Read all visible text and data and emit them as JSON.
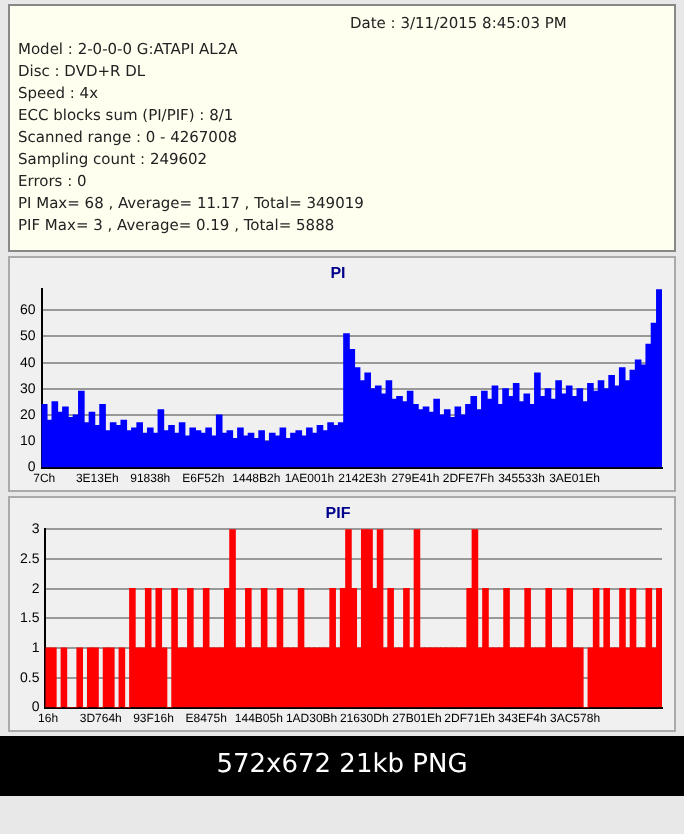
{
  "chart_data": [
    {
      "type": "other",
      "annotations": [
        "Date : 3/11/2015 8:45:03 PM",
        "Model : 2-0-0-0 G:ATAPI AL2A",
        "Disc : DVD+R DL",
        "Speed : 4x",
        "ECC blocks sum (PI/PIF) : 8/1",
        "Scanned range : 0 - 4267008",
        "Sampling count : 249602",
        "Errors : 0",
        "PI Max= 68 , Average= 11.17 , Total= 349019",
        "PIF Max= 3 , Average= 0.19 , Total= 5888"
      ]
    },
    {
      "type": "bar",
      "title": "PI",
      "color": "#0000ff",
      "grid": "y",
      "legend": false,
      "ylim": [
        0,
        68
      ],
      "yticks": [
        0,
        10,
        20,
        30,
        40,
        50,
        60
      ],
      "categories": [
        "7Ch",
        null,
        null,
        null,
        null,
        null,
        null,
        null,
        null,
        null,
        "3E13Eh",
        null,
        null,
        null,
        null,
        null,
        null,
        null,
        null,
        null,
        "91838h",
        null,
        null,
        null,
        null,
        null,
        null,
        null,
        null,
        null,
        "E6F52h",
        null,
        null,
        null,
        null,
        null,
        null,
        null,
        null,
        null,
        "1448B2h",
        null,
        null,
        null,
        null,
        null,
        null,
        null,
        null,
        null,
        "1AE001h",
        null,
        null,
        null,
        null,
        null,
        null,
        null,
        null,
        null,
        "2142E3h",
        null,
        null,
        null,
        null,
        null,
        null,
        null,
        null,
        null,
        "279E41h",
        null,
        null,
        null,
        null,
        null,
        null,
        null,
        null,
        null,
        "2DFE7Fh",
        null,
        null,
        null,
        null,
        null,
        null,
        null,
        null,
        null,
        "345533h",
        null,
        null,
        null,
        null,
        null,
        null,
        null,
        null,
        null,
        "3AE01Eh",
        null,
        null,
        null,
        null,
        null,
        null,
        null,
        null,
        null,
        null,
        null,
        null,
        null,
        null,
        null,
        null
      ],
      "values": [
        24,
        18,
        25,
        21,
        23,
        19,
        20,
        29,
        17,
        21,
        16,
        24,
        14,
        17,
        16,
        18,
        14,
        15,
        17,
        13,
        15,
        13,
        22,
        14,
        16,
        13,
        17,
        12,
        15,
        14,
        13,
        15,
        12,
        20,
        13,
        14,
        11,
        15,
        12,
        13,
        11,
        14,
        10,
        13,
        12,
        15,
        11,
        13,
        14,
        12,
        15,
        13,
        16,
        14,
        17,
        16,
        17,
        51,
        45,
        38,
        33,
        36,
        30,
        31,
        28,
        33,
        26,
        27,
        25,
        29,
        24,
        22,
        23,
        21,
        26,
        20,
        22,
        19,
        23,
        20,
        24,
        27,
        22,
        29,
        26,
        31,
        24,
        30,
        27,
        32,
        25,
        28,
        24,
        36,
        27,
        30,
        26,
        33,
        28,
        31,
        27,
        30,
        25,
        32,
        29,
        33,
        30,
        35,
        31,
        38,
        33,
        37,
        41,
        39,
        47,
        55,
        68
      ]
    },
    {
      "type": "bar",
      "title": "PIF",
      "color": "#ff0000",
      "grid": "y",
      "legend": false,
      "ylim": [
        0,
        3
      ],
      "yticks": [
        0,
        0.5,
        1,
        1.5,
        2,
        2.5,
        3
      ],
      "categories": [
        "16h",
        null,
        null,
        null,
        null,
        null,
        null,
        null,
        null,
        null,
        "3D764h",
        null,
        null,
        null,
        null,
        null,
        null,
        null,
        null,
        null,
        "93F16h",
        null,
        null,
        null,
        null,
        null,
        null,
        null,
        null,
        null,
        "E8475h",
        null,
        null,
        null,
        null,
        null,
        null,
        null,
        null,
        null,
        "144B05h",
        null,
        null,
        null,
        null,
        null,
        null,
        null,
        null,
        null,
        "1AD30Bh",
        null,
        null,
        null,
        null,
        null,
        null,
        null,
        null,
        null,
        "21630Dh",
        null,
        null,
        null,
        null,
        null,
        null,
        null,
        null,
        null,
        "27B01Eh",
        null,
        null,
        null,
        null,
        null,
        null,
        null,
        null,
        null,
        "2DF71Eh",
        null,
        null,
        null,
        null,
        null,
        null,
        null,
        null,
        null,
        "343EF4h",
        null,
        null,
        null,
        null,
        null,
        null,
        null,
        null,
        null,
        "3AC578h",
        null,
        null,
        null,
        null,
        null,
        null,
        null,
        null,
        null,
        null,
        null,
        null,
        null,
        null,
        null,
        null
      ],
      "values": [
        1,
        1,
        0,
        1,
        0,
        0,
        1,
        0,
        1,
        1,
        0,
        1,
        1,
        0,
        1,
        0,
        2,
        1,
        1,
        2,
        1,
        2,
        1,
        0,
        2,
        1,
        1,
        2,
        1,
        1,
        2,
        1,
        1,
        1,
        2,
        3,
        1,
        1,
        2,
        1,
        1,
        2,
        1,
        1,
        2,
        1,
        1,
        1,
        2,
        1,
        1,
        1,
        1,
        1,
        2,
        1,
        2,
        3,
        2,
        1,
        3,
        3,
        2,
        3,
        1,
        2,
        1,
        1,
        2,
        1,
        3,
        1,
        1,
        1,
        1,
        1,
        1,
        1,
        1,
        1,
        2,
        3,
        1,
        2,
        1,
        1,
        1,
        2,
        1,
        1,
        1,
        2,
        1,
        1,
        1,
        2,
        1,
        1,
        1,
        2,
        1,
        1,
        0,
        1,
        2,
        1,
        2,
        1,
        1,
        2,
        1,
        2,
        1,
        1,
        2,
        1,
        2
      ],
      "annotations": [
        "572x672 21kb PNG"
      ]
    }
  ]
}
